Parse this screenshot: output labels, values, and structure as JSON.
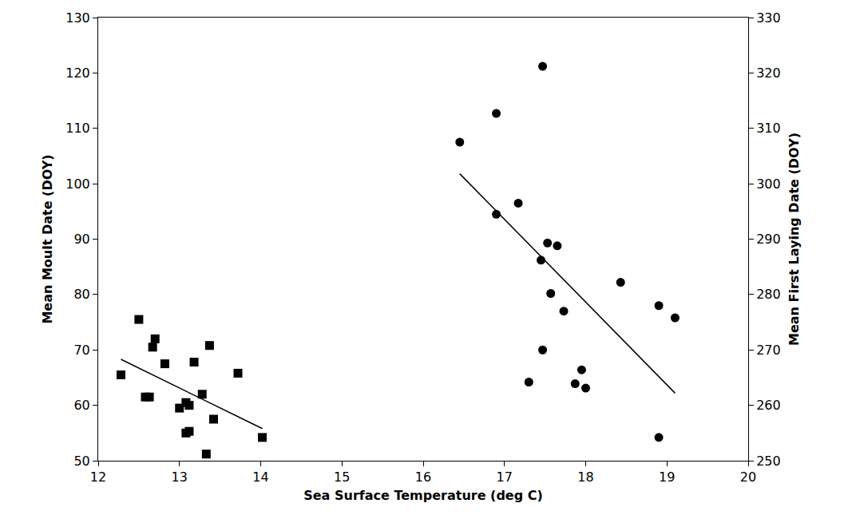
{
  "chart_data": {
    "type": "scatter",
    "xlabel": "Sea Surface Temperature (deg C)",
    "ylabel": "Mean Moult Date (DOY)",
    "y2label": "Mean First Laying Date (DOY)",
    "xlim": [
      12,
      20
    ],
    "xticks": [
      12,
      13,
      14,
      15,
      16,
      17,
      18,
      19,
      20
    ],
    "ylim": [
      50,
      130
    ],
    "yticks": [
      50,
      60,
      70,
      80,
      90,
      100,
      110,
      120,
      130
    ],
    "y2lim": [
      250,
      330
    ],
    "y2ticks": [
      250,
      260,
      270,
      280,
      290,
      300,
      310,
      320,
      330
    ],
    "grid": false,
    "series": [
      {
        "type": "scatter",
        "axis": "y",
        "color": "#000000",
        "marker": "square",
        "x": [
          12.28,
          12.5,
          12.58,
          12.63,
          12.67,
          12.7,
          12.82,
          13.0,
          13.08,
          13.08,
          13.12,
          13.12,
          13.18,
          13.28,
          13.33,
          13.37,
          13.42,
          13.72,
          14.02
        ],
        "values": [
          65.5,
          75.5,
          61.5,
          61.5,
          70.5,
          72,
          67.5,
          59.5,
          60.5,
          55,
          55.3,
          60,
          67.8,
          62,
          51.2,
          70.8,
          57.5,
          65.8,
          54.2
        ]
      },
      {
        "type": "line",
        "axis": "y",
        "color": "#000000",
        "line_style": "solid",
        "x": [
          12.28,
          14.02
        ],
        "values": [
          68.3,
          55.8
        ]
      },
      {
        "type": "scatter",
        "axis": "y2",
        "color": "#000000",
        "marker": "circle",
        "x": [
          16.45,
          16.9,
          16.9,
          17.17,
          17.3,
          17.45,
          17.47,
          17.47,
          17.53,
          17.57,
          17.65,
          17.73,
          17.87,
          17.95,
          18.0,
          18.43,
          18.9,
          18.9,
          19.1
        ],
        "values": [
          307.5,
          312.7,
          294.5,
          296.5,
          264.2,
          286.2,
          270,
          321.2,
          289.3,
          280.2,
          288.8,
          277,
          263.9,
          266.4,
          263.1,
          282.2,
          278,
          254.2,
          275.8
        ]
      },
      {
        "type": "line",
        "axis": "y2",
        "color": "#000000",
        "line_style": "solid",
        "x": [
          16.45,
          19.1
        ],
        "values": [
          301.8,
          262.2
        ]
      }
    ]
  }
}
